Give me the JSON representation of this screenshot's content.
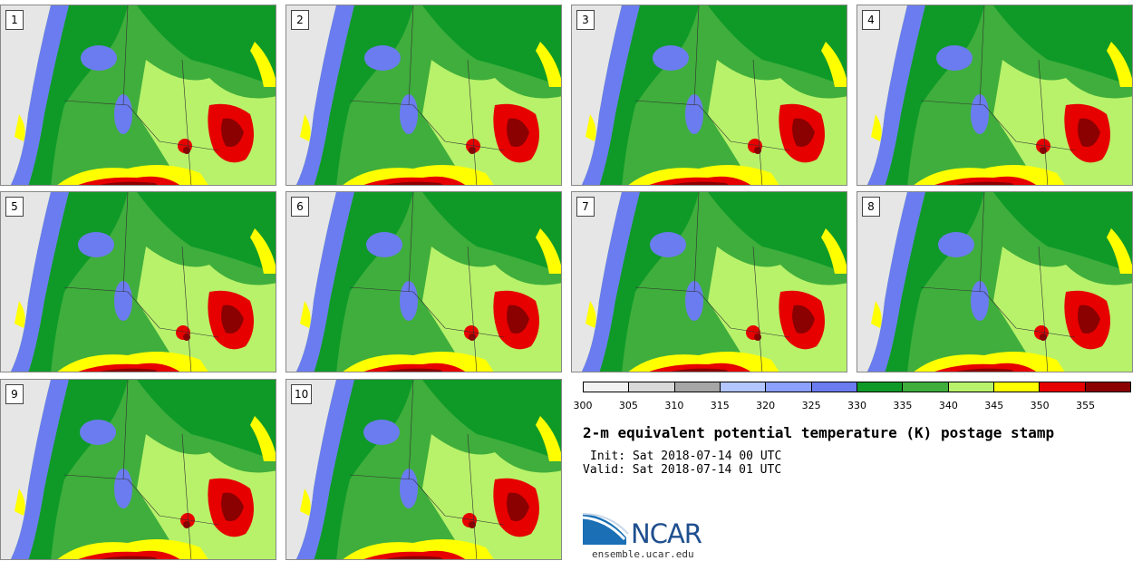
{
  "panels": [
    {
      "label": "1"
    },
    {
      "label": "2"
    },
    {
      "label": "3"
    },
    {
      "label": "4"
    },
    {
      "label": "5"
    },
    {
      "label": "6"
    },
    {
      "label": "7"
    },
    {
      "label": "8"
    },
    {
      "label": "9"
    },
    {
      "label": "10"
    }
  ],
  "colorbar": {
    "colors": [
      "#f2f2f2",
      "#d9d9d9",
      "#a6a6a6",
      "#b3c6ff",
      "#8ca0ff",
      "#6b7cf0",
      "#0f9a28",
      "#3fae3c",
      "#b8f26a",
      "#ffff00",
      "#e60000",
      "#8b0000"
    ],
    "ticks": [
      "300",
      "305",
      "310",
      "315",
      "320",
      "325",
      "330",
      "335",
      "340",
      "345",
      "350",
      "355"
    ]
  },
  "title": "2-m equivalent potential temperature (K) postage stamp",
  "init": "Init: Sat 2018-07-14 00 UTC",
  "valid": "Valid: Sat 2018-07-14 01 UTC",
  "logo": {
    "text": "NCAR",
    "url": "ensemble.ucar.edu"
  }
}
